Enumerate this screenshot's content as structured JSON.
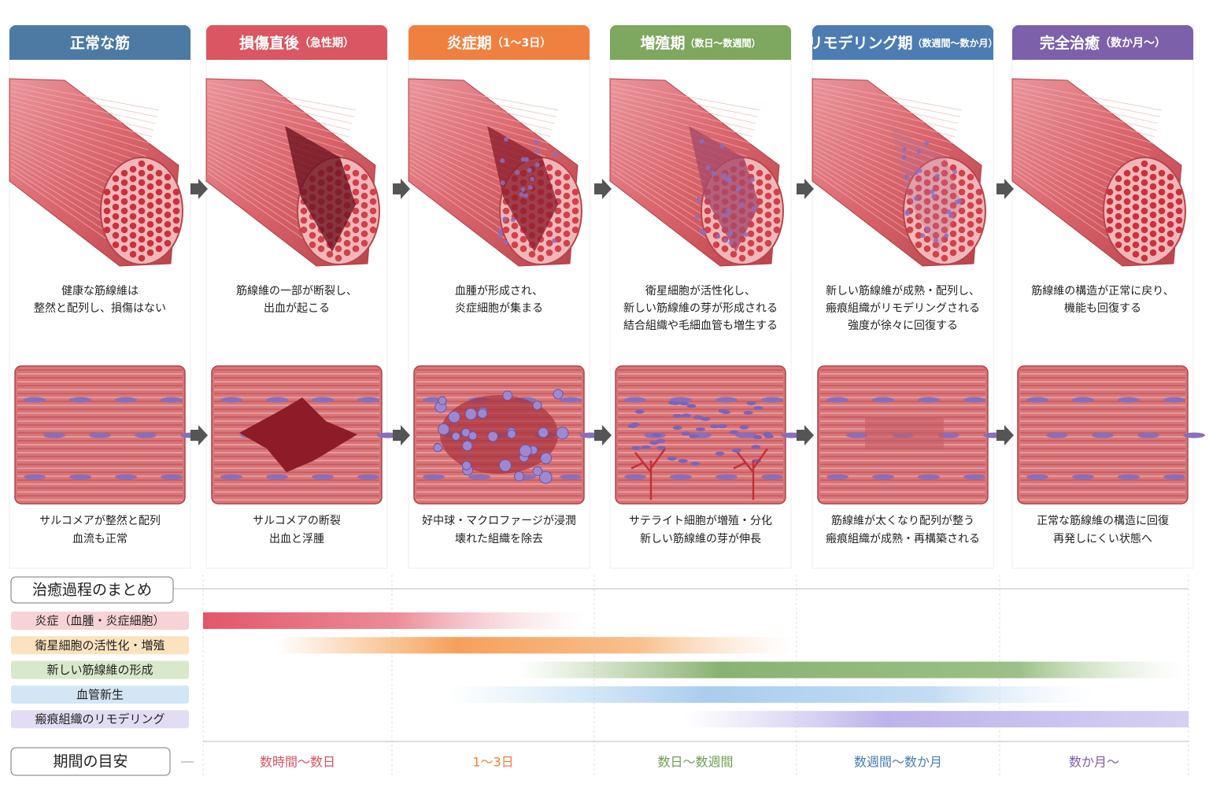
{
  "stages": [
    {
      "title": "正常な筋",
      "desc": [
        "健康な筋線維は",
        "整然と配列し、損傷はない"
      ],
      "detail": [
        "サルコメアが整然と配列",
        "血流も正常"
      ]
    },
    {
      "title": "損傷直後",
      "note": "（急性期）",
      "desc": [
        "筋線維の一部が断裂し、",
        "出血が起こる"
      ],
      "detail": [
        "サルコメアの断裂",
        "出血と浮腫"
      ]
    },
    {
      "title": "炎症期",
      "note": "（1〜3日）",
      "desc": [
        "血腫が形成され、",
        "炎症細胞が集まる"
      ],
      "detail": [
        "好中球・マクロファージが浸潤",
        "壊れた組織を除去"
      ]
    },
    {
      "title": "増殖期",
      "note": "（数日〜数週間）",
      "desc": [
        "衛星細胞が活性化し、",
        "新しい筋線維の芽が形成される",
        "結合組織や毛細血管も増生する"
      ],
      "detail": [
        "サテライト細胞が増殖・分化",
        "新しい筋線維の芽が伸長"
      ]
    },
    {
      "title": "リモデリング期",
      "note": "（数週間〜数か月）",
      "desc": [
        "新しい筋線維が成熟・配列し、",
        "瘢痕組織がリモデリングされる",
        "強度が徐々に回復する"
      ],
      "detail": [
        "筋線維が太くなり配列が整う",
        "瘢痕組織が成熟・再構築される"
      ]
    },
    {
      "title": "完全治癒",
      "note": "（数か月〜）",
      "desc": [
        "筋線維の構造が正常に戻り、",
        "機能も回復する"
      ],
      "detail": [
        "正常な筋線維の構造に回復",
        "再発しにくい状態へ"
      ]
    }
  ],
  "summary": {
    "title": "治癒過程のまとめ",
    "processes": [
      "炎症（血腫・炎症細胞）",
      "衛星細胞の活性化・増殖",
      "新しい筋線維の形成",
      "血管新生",
      "瘢痕組織のリモデリング"
    ],
    "period_title": "期間の目安",
    "periods": [
      "数時間〜数日",
      "1〜3日",
      "数日〜数週間",
      "数週間〜数か月",
      "数か月〜"
    ]
  }
}
